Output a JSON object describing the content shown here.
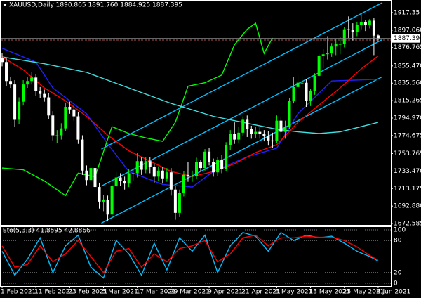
{
  "chart_data": [
    {
      "type": "candlestick",
      "title": "XAUUSD,Daily  1890.865 1891.760 1884.925 1887.395",
      "open": [
        1865,
        1860,
        1838,
        1834,
        1793,
        1814,
        1834,
        1838,
        1842,
        1826,
        1823,
        1819,
        1798,
        1775,
        1775,
        1783,
        1808,
        1805,
        1797,
        1770,
        1734,
        1723,
        1737,
        1715,
        1698,
        1700,
        1683,
        1716,
        1726,
        1722,
        1719,
        1731,
        1731,
        1745,
        1735,
        1745,
        1738,
        1727,
        1734,
        1725,
        1732,
        1712,
        1685,
        1708,
        1729,
        1728,
        1728,
        1744,
        1737,
        1756,
        1744,
        1732,
        1746,
        1736,
        1764,
        1777,
        1770,
        1778,
        1793,
        1782,
        1777,
        1779,
        1777,
        1774,
        1769,
        1768,
        1792,
        1779,
        1785,
        1815,
        1831,
        1836,
        1836,
        1815,
        1826,
        1844,
        1867,
        1869,
        1870,
        1878,
        1881,
        1881,
        1898,
        1897,
        1895,
        1903,
        1906,
        1903,
        1908,
        1890.865
      ],
      "high": [
        1870,
        1865,
        1843,
        1839,
        1819,
        1839,
        1843,
        1848,
        1846,
        1831,
        1828,
        1824,
        1803,
        1781,
        1789,
        1813,
        1814,
        1810,
        1802,
        1775,
        1740,
        1742,
        1741,
        1720,
        1706,
        1705,
        1721,
        1732,
        1731,
        1727,
        1736,
        1737,
        1755,
        1750,
        1750,
        1750,
        1742,
        1739,
        1738,
        1737,
        1737,
        1716,
        1712,
        1733,
        1744,
        1734,
        1749,
        1746,
        1759,
        1760,
        1748,
        1750,
        1752,
        1767,
        1781,
        1790,
        1785,
        1797,
        1798,
        1786,
        1785,
        1784,
        1781,
        1780,
        1778,
        1798,
        1796,
        1792,
        1818,
        1843,
        1846,
        1844,
        1840,
        1829,
        1847,
        1869,
        1875,
        1890,
        1882,
        1887,
        1889,
        1901,
        1913,
        1905,
        1906,
        1916,
        1909,
        1910,
        1911,
        1891.76
      ],
      "low": [
        1855,
        1832,
        1830,
        1785,
        1788,
        1810,
        1830,
        1834,
        1821,
        1818,
        1814,
        1794,
        1769,
        1766,
        1770,
        1780,
        1800,
        1792,
        1765,
        1729,
        1717,
        1718,
        1709,
        1690,
        1687,
        1676,
        1678,
        1713,
        1716,
        1712,
        1715,
        1722,
        1726,
        1729,
        1731,
        1731,
        1720,
        1722,
        1719,
        1721,
        1705,
        1677,
        1680,
        1704,
        1721,
        1721,
        1724,
        1733,
        1734,
        1740,
        1727,
        1728,
        1731,
        1733,
        1758,
        1765,
        1766,
        1774,
        1773,
        1771,
        1772,
        1771,
        1768,
        1763,
        1760,
        1766,
        1770,
        1771,
        1782,
        1812,
        1827,
        1829,
        1808,
        1809,
        1822,
        1843,
        1853,
        1863,
        1866,
        1868,
        1869,
        1877,
        1888,
        1885,
        1890,
        1898,
        1896,
        1899,
        1868,
        1884.925
      ],
      "close": [
        1860,
        1838,
        1834,
        1793,
        1814,
        1834,
        1838,
        1842,
        1826,
        1823,
        1819,
        1798,
        1775,
        1775,
        1783,
        1808,
        1805,
        1797,
        1770,
        1734,
        1723,
        1737,
        1715,
        1698,
        1700,
        1683,
        1716,
        1726,
        1722,
        1719,
        1731,
        1731,
        1745,
        1735,
        1745,
        1738,
        1727,
        1734,
        1725,
        1732,
        1712,
        1685,
        1708,
        1729,
        1728,
        1728,
        1744,
        1737,
        1756,
        1744,
        1732,
        1746,
        1736,
        1764,
        1777,
        1770,
        1778,
        1793,
        1782,
        1777,
        1779,
        1777,
        1774,
        1769,
        1768,
        1792,
        1779,
        1785,
        1815,
        1831,
        1836,
        1836,
        1815,
        1826,
        1844,
        1867,
        1869,
        1870,
        1878,
        1881,
        1881,
        1898,
        1897,
        1895,
        1903,
        1906,
        1903,
        1908,
        1890.6,
        1887.395
      ],
      "up_color": "#00ff00",
      "down_color": "#ffffff",
      "xlim": [
        -0.5,
        92
      ],
      "xticks": [
        {
          "value": 0,
          "label": "1 Feb 2021"
        },
        {
          "value": 8,
          "label": "11 Feb 2021"
        },
        {
          "value": 16,
          "label": "23 Feb 2021"
        },
        {
          "value": 24,
          "label": "5 Mar 2021"
        },
        {
          "value": 32,
          "label": "17 Mar 2021"
        },
        {
          "value": 40,
          "label": "29 Mar 2021"
        },
        {
          "value": 49,
          "label": "9 Apr 2021"
        },
        {
          "value": 57,
          "label": "21 Apr 2021"
        },
        {
          "value": 65,
          "label": "3 May 2021"
        },
        {
          "value": 73,
          "label": "13 May 2021"
        },
        {
          "value": 81,
          "label": "25 May 2021"
        },
        {
          "value": 89,
          "label": "4 Jun 2021"
        }
      ],
      "ylim": [
        1671,
        1932
      ],
      "yticks": [
        1917.35,
        {
          "value": 1897.06,
          "label": "1897.060"
        },
        1876.765,
        {
          "value": 1855.47,
          "label": "1855.470"
        },
        {
          "value": 1835.56,
          "label": "1835.560"
        },
        1815.265,
        {
          "value": 1794.97,
          "label": "1794.970"
        },
        1774.675,
        1753.765,
        {
          "value": 1733.47,
          "label": "1733.470"
        },
        1713.175,
        {
          "value": 1692.88,
          "label": "1692.880"
        },
        1672.585
      ],
      "last_price": 1887.395,
      "hline": 1885.5,
      "hline_color": "#b05050",
      "overlays": [
        {
          "color": "#00bfff",
          "x": [
            23.5,
            90
          ],
          "values": [
            1673,
            1843
          ]
        },
        {
          "color": "#00bfff",
          "x": [
            23.5,
            90
          ],
          "values": [
            1716,
            1886
          ]
        },
        {
          "color": "#00bfff",
          "x": [
            23.5,
            90
          ],
          "values": [
            1759,
            1929
          ]
        },
        {
          "color": "#2020ff",
          "x": [
            0,
            8,
            12,
            20,
            25,
            30,
            38,
            45,
            50,
            58,
            65,
            70,
            78,
            89
          ],
          "values": [
            1876,
            1860,
            1830,
            1800,
            1765,
            1733,
            1718,
            1715,
            1733,
            1750,
            1760,
            1800,
            1838,
            1840
          ]
        },
        {
          "color": "#00ff00",
          "x": [
            0,
            5,
            10,
            15,
            18,
            22,
            26,
            30,
            34,
            38,
            41,
            44,
            48,
            52,
            55,
            58,
            60,
            62,
            64
          ],
          "values": [
            1737,
            1735,
            1722,
            1705,
            1731,
            1727,
            1785,
            1777,
            1772,
            1768,
            1790,
            1832,
            1836,
            1845,
            1880,
            1898,
            1905,
            1870,
            1888
          ]
        },
        {
          "color": "#40e0e0",
          "x": [
            0,
            10,
            20,
            30,
            40,
            50,
            60,
            65,
            70,
            75,
            80,
            85,
            89
          ],
          "values": [
            1866,
            1858,
            1848,
            1830,
            1812,
            1797,
            1787,
            1782,
            1779,
            1777,
            1779,
            1785,
            1790
          ]
        },
        {
          "color": "#ff0000",
          "x": [
            0,
            5,
            10,
            15,
            20,
            25,
            30,
            35,
            40,
            45,
            50,
            55,
            60,
            65,
            70,
            75,
            80,
            85,
            89
          ],
          "values": [
            1866,
            1851,
            1830,
            1815,
            1797,
            1775,
            1757,
            1745,
            1733,
            1727,
            1733,
            1742,
            1755,
            1764,
            1790,
            1810,
            1830,
            1852,
            1867
          ]
        }
      ]
    },
    {
      "type": "line",
      "title": "Sto(5,3,3) 41.8595 42.8866",
      "xlim": [
        -0.5,
        92
      ],
      "ylim": [
        0,
        100
      ],
      "yticks": [
        100,
        80,
        20,
        0
      ],
      "series": [
        {
          "color": "#00bfff",
          "x": [
            0,
            3,
            6,
            9,
            12,
            15,
            18,
            21,
            24,
            27,
            30,
            33,
            36,
            39,
            42,
            45,
            48,
            51,
            54,
            57,
            60,
            63,
            66,
            69,
            72,
            75,
            78,
            81,
            84,
            87,
            89
          ],
          "values": [
            60,
            15,
            45,
            85,
            20,
            70,
            90,
            30,
            10,
            80,
            55,
            15,
            75,
            25,
            85,
            60,
            90,
            20,
            70,
            95,
            88,
            60,
            95,
            80,
            90,
            85,
            88,
            75,
            60,
            50,
            41.86
          ]
        },
        {
          "color": "#ff0000",
          "x": [
            0,
            3,
            6,
            9,
            12,
            15,
            18,
            21,
            24,
            27,
            30,
            33,
            36,
            39,
            42,
            45,
            48,
            51,
            54,
            57,
            60,
            63,
            66,
            69,
            72,
            75,
            78,
            81,
            84,
            87,
            89
          ],
          "values": [
            70,
            30,
            35,
            70,
            40,
            55,
            80,
            50,
            20,
            60,
            65,
            30,
            55,
            40,
            65,
            70,
            80,
            40,
            55,
            85,
            90,
            70,
            85,
            85,
            88,
            86,
            86,
            80,
            68,
            52,
            42.89
          ]
        }
      ]
    }
  ]
}
